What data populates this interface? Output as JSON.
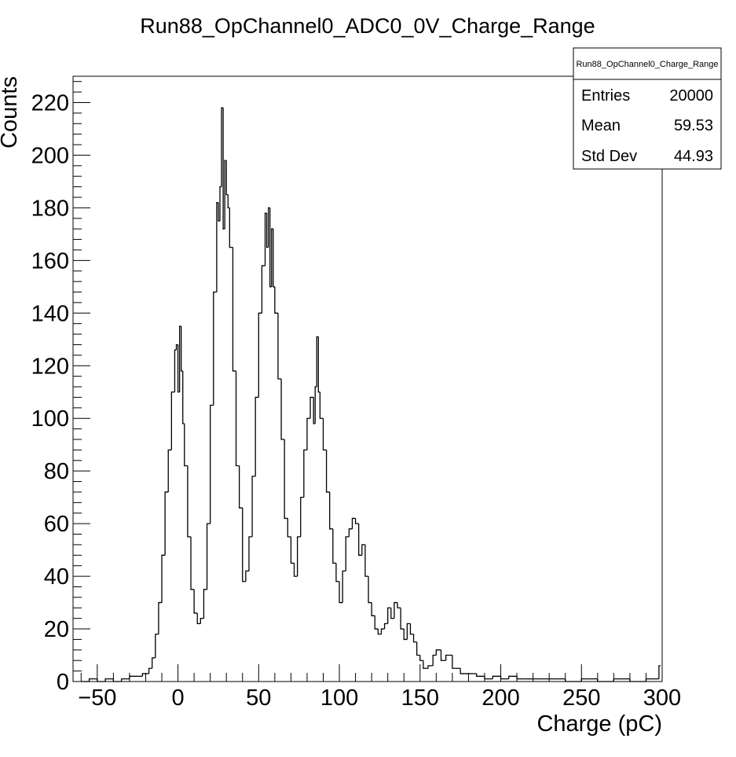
{
  "chart_data": {
    "type": "histogram",
    "title": "Run88_OpChannel0_ADC0_0V_Charge_Range",
    "xlabel": "Charge (pC)",
    "ylabel": "Counts",
    "xlim": [
      -65,
      300
    ],
    "ylim": [
      0,
      230
    ],
    "xticks": [
      -50,
      0,
      50,
      100,
      150,
      200,
      250,
      300
    ],
    "yticks": [
      0,
      20,
      40,
      60,
      80,
      100,
      120,
      140,
      160,
      180,
      200,
      220
    ],
    "grid": false,
    "stats_box": {
      "title": "Run88_OpChannel0_Charge_Range",
      "rows": [
        {
          "label": "Entries",
          "value": "20000"
        },
        {
          "label": "Mean",
          "value": "59.53"
        },
        {
          "label": "Std Dev",
          "value": "44.93"
        }
      ]
    },
    "series": [
      {
        "bin_width": 1,
        "x": [
          -60,
          -55,
          -50,
          -45,
          -40,
          -35,
          -30,
          -25,
          -22,
          -20,
          -18,
          -16,
          -14,
          -12,
          -10,
          -8,
          -6,
          -4,
          -2,
          -1,
          0,
          1,
          2,
          3,
          4,
          6,
          8,
          10,
          12,
          14,
          16,
          18,
          20,
          22,
          24,
          25,
          26,
          27,
          28,
          29,
          30,
          31,
          32,
          34,
          36,
          38,
          40,
          42,
          44,
          46,
          48,
          50,
          52,
          54,
          55,
          56,
          57,
          58,
          59,
          60,
          62,
          64,
          66,
          68,
          70,
          72,
          74,
          76,
          78,
          80,
          82,
          84,
          85,
          86,
          87,
          88,
          90,
          92,
          94,
          96,
          98,
          100,
          102,
          104,
          106,
          108,
          110,
          112,
          114,
          116,
          118,
          120,
          122,
          124,
          126,
          128,
          130,
          132,
          134,
          136,
          138,
          140,
          142,
          144,
          146,
          148,
          150,
          152,
          155,
          158,
          160,
          163,
          166,
          170,
          175,
          180,
          185,
          190,
          195,
          200,
          205,
          210,
          215,
          220,
          230,
          240,
          250,
          260,
          270,
          280,
          290,
          298
        ],
        "counts": [
          0,
          1,
          0,
          1,
          0,
          1,
          2,
          2,
          3,
          3,
          5,
          9,
          18,
          30,
          48,
          72,
          88,
          110,
          126,
          128,
          110,
          135,
          118,
          98,
          82,
          55,
          35,
          26,
          22,
          24,
          35,
          60,
          105,
          148,
          182,
          175,
          188,
          218,
          172,
          198,
          185,
          180,
          165,
          118,
          82,
          66,
          38,
          42,
          55,
          78,
          108,
          140,
          158,
          178,
          165,
          180,
          150,
          172,
          150,
          140,
          115,
          92,
          62,
          55,
          45,
          40,
          55,
          70,
          88,
          100,
          108,
          98,
          112,
          131,
          110,
          100,
          88,
          72,
          58,
          45,
          38,
          30,
          42,
          55,
          58,
          62,
          60,
          48,
          52,
          40,
          30,
          25,
          20,
          18,
          20,
          22,
          28,
          24,
          30,
          28,
          20,
          16,
          22,
          18,
          15,
          10,
          8,
          5,
          6,
          10,
          12,
          8,
          10,
          5,
          3,
          3,
          2,
          1,
          2,
          1,
          2,
          1,
          1,
          1,
          1,
          0,
          1,
          0,
          1,
          0,
          1,
          6
        ]
      }
    ]
  }
}
